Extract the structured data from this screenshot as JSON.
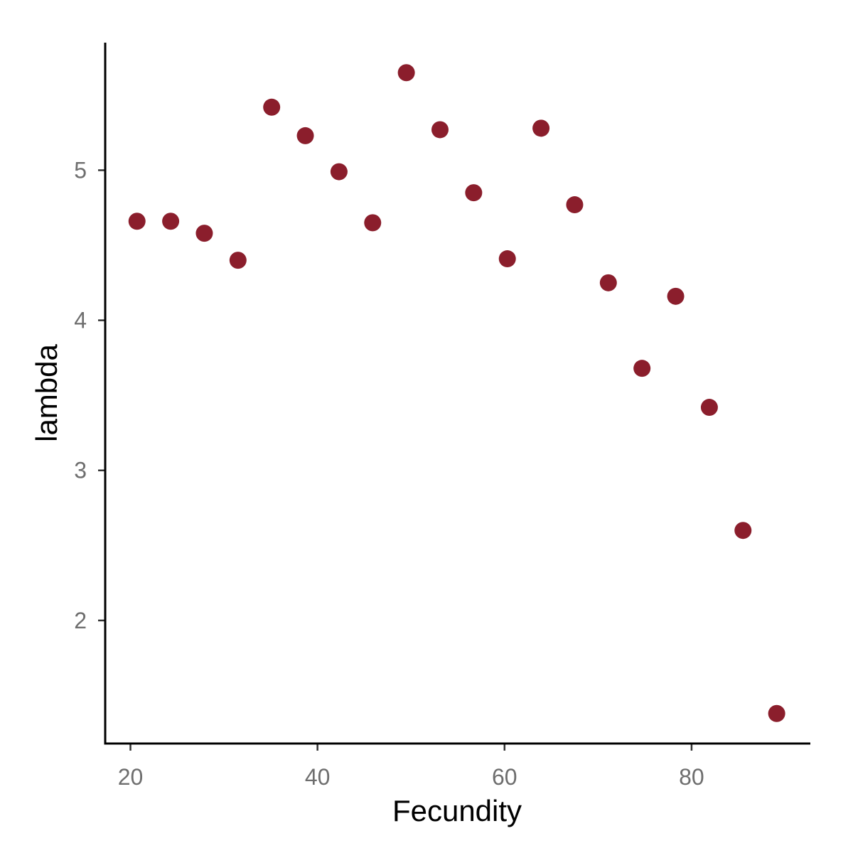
{
  "chart_data": {
    "type": "scatter",
    "xlabel": "Fecundity",
    "ylabel": "lambda",
    "xlim": [
      17.3,
      92.7
    ],
    "ylim": [
      1.18,
      5.85
    ],
    "x_ticks": [
      20,
      40,
      60,
      80
    ],
    "y_ticks": [
      2,
      3,
      4,
      5
    ],
    "grid": false,
    "legend": "none",
    "point_color": "#8b1e2c",
    "series": [
      {
        "x": [
          20.7,
          24.3,
          27.9,
          31.5,
          35.1,
          38.7,
          42.3,
          45.9,
          49.5,
          53.1,
          56.7,
          60.3,
          63.9,
          67.5,
          71.1,
          74.7,
          78.3,
          81.9,
          85.5,
          89.1
        ],
        "y": [
          4.66,
          4.66,
          4.58,
          4.4,
          5.42,
          5.23,
          4.99,
          4.65,
          5.65,
          5.27,
          4.85,
          4.41,
          5.28,
          4.77,
          4.25,
          3.68,
          4.16,
          3.42,
          2.6,
          1.38
        ]
      }
    ]
  }
}
